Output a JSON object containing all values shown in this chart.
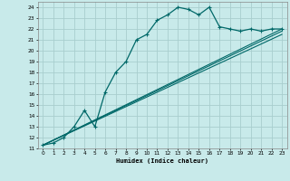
{
  "xlabel": "Humidex (Indice chaleur)",
  "bg_color": "#c8eaea",
  "grid_color": "#a8cece",
  "line_color": "#006868",
  "xlim": [
    -0.5,
    23.5
  ],
  "ylim": [
    11,
    24.5
  ],
  "xticks": [
    0,
    1,
    2,
    3,
    4,
    5,
    6,
    7,
    8,
    9,
    10,
    11,
    12,
    13,
    14,
    15,
    16,
    17,
    18,
    19,
    20,
    21,
    22,
    23
  ],
  "yticks": [
    11,
    12,
    13,
    14,
    15,
    16,
    17,
    18,
    19,
    20,
    21,
    22,
    23,
    24
  ],
  "series1_x": [
    0,
    1,
    2,
    3,
    4,
    5,
    6,
    7,
    8,
    9,
    10,
    11,
    12,
    13,
    14,
    15,
    16,
    17,
    18,
    19,
    20,
    21,
    22,
    23
  ],
  "series1_y": [
    11.3,
    11.5,
    12.0,
    13.0,
    14.5,
    13.0,
    16.2,
    18.0,
    19.0,
    21.0,
    21.5,
    22.8,
    23.3,
    24.0,
    23.8,
    23.3,
    24.0,
    22.2,
    22.0,
    21.8,
    22.0,
    21.8,
    22.0,
    22.0
  ],
  "line2_x0": 0,
  "line2_y0": 11.3,
  "line2_x1": 23,
  "line2_y1": 22.0,
  "line3_x0": 0,
  "line3_y0": 11.3,
  "line3_x1": 23,
  "line3_y1": 21.8,
  "line4_x0": 0,
  "line4_y0": 11.3,
  "line4_x1": 23,
  "line4_y1": 21.5
}
